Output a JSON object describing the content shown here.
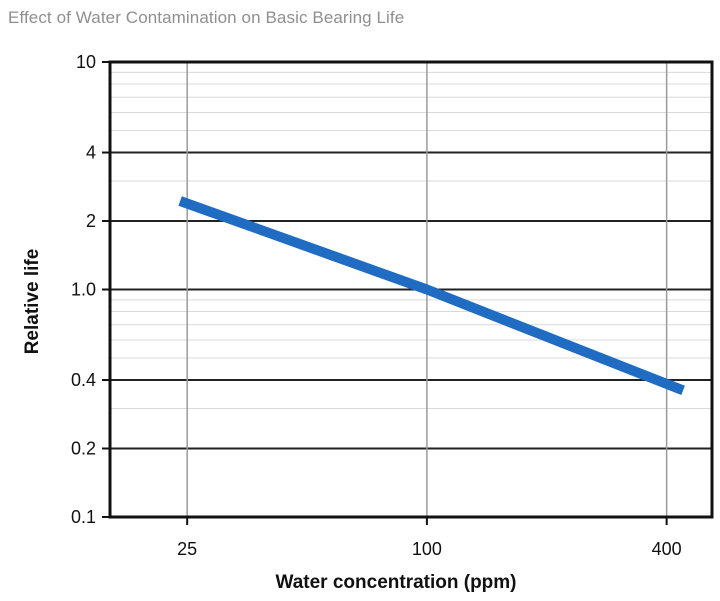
{
  "chart_data": {
    "type": "line",
    "title": "Effect of Water Contamination on Basic Bearing Life",
    "xlabel": "Water concentration (ppm)",
    "ylabel": "Relative life",
    "x_scale": "log",
    "y_scale": "log",
    "xlim": [
      16,
      520
    ],
    "ylim": [
      0.1,
      10
    ],
    "x_ticks": [
      25,
      100,
      400
    ],
    "x_tick_labels": [
      "25",
      "100",
      "400"
    ],
    "y_ticks": [
      10,
      4,
      2,
      1.0,
      0.4,
      0.2,
      0.1
    ],
    "y_tick_labels": [
      "10",
      "4",
      "2",
      "1.0",
      "0.4",
      "0.2",
      "0.1"
    ],
    "grid": true,
    "legend": "none",
    "series": [
      {
        "x": [
          24,
          100,
          440
        ],
        "y": [
          2.45,
          1.0,
          0.36
        ]
      }
    ]
  },
  "colors": {
    "line": "#1f6cc2",
    "axes": "#111111",
    "major_grid": "#222222",
    "minor_grid": "#d9d9d9",
    "title": "#8f8f8f"
  }
}
